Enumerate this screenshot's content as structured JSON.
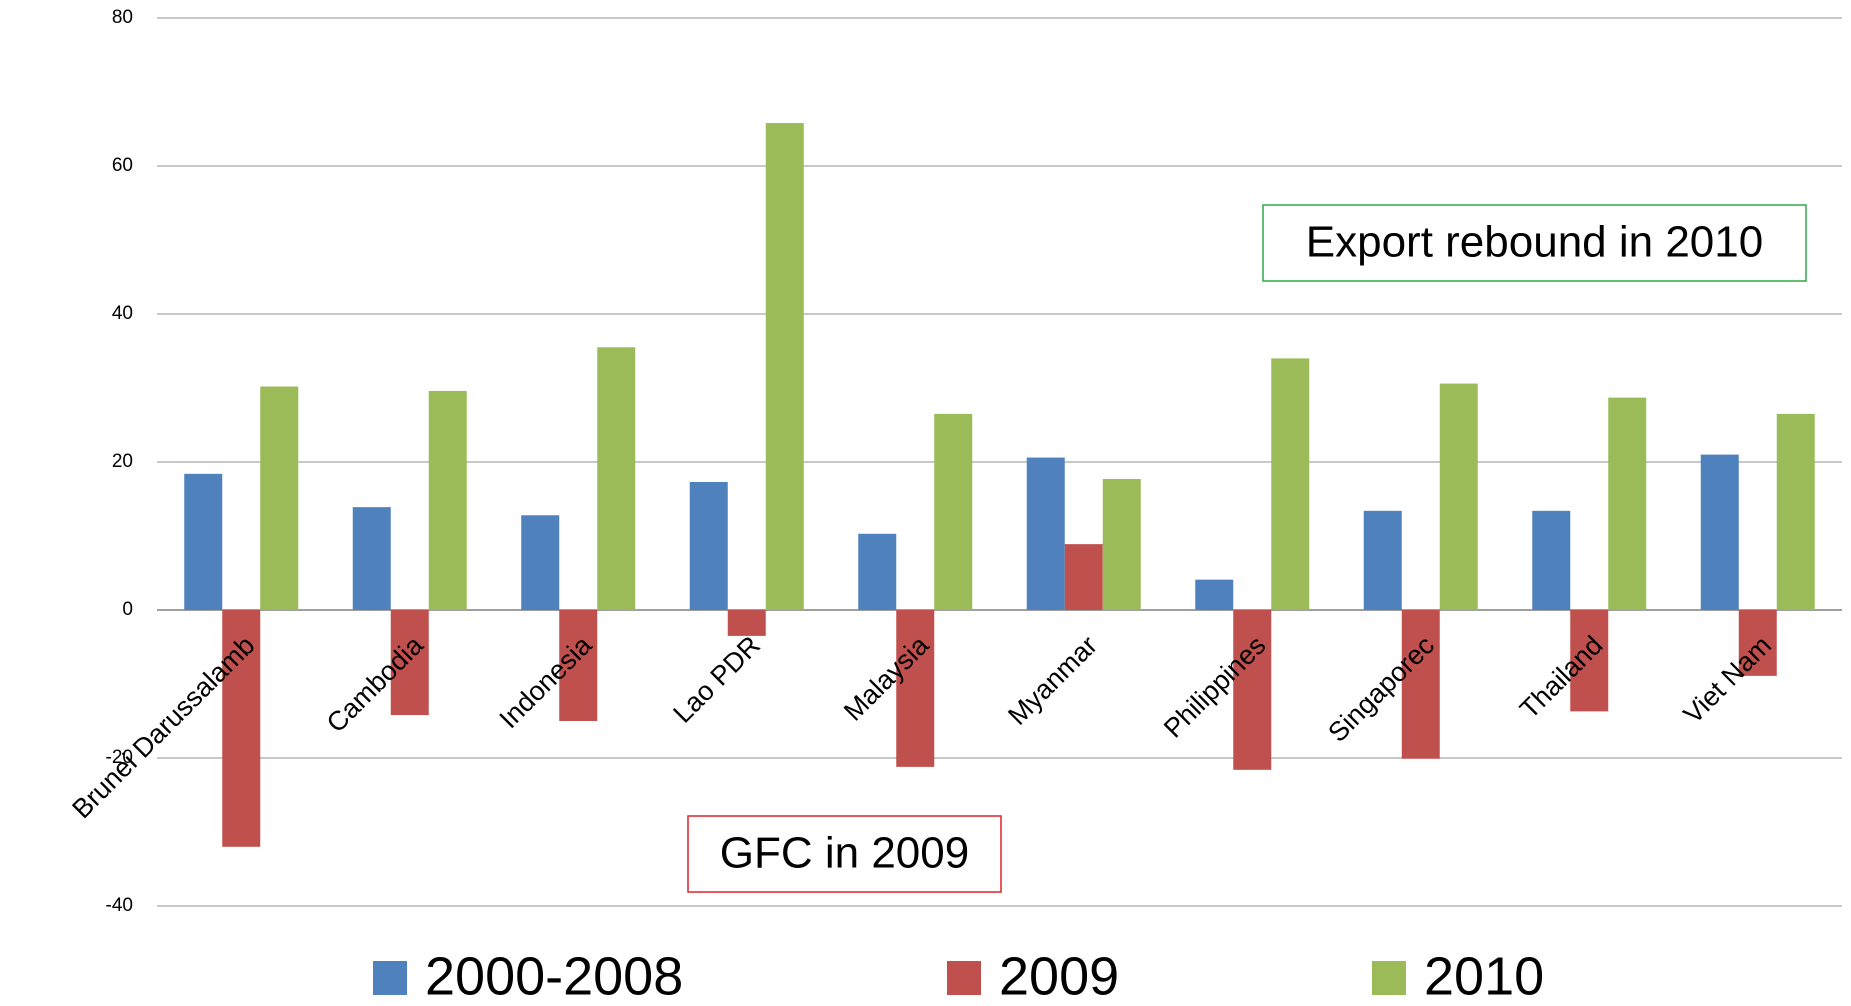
{
  "chart_data": {
    "type": "bar",
    "categories": [
      "Brunei Darussalamb",
      "Cambodia",
      "Indonesia",
      "Lao PDR",
      "Malaysia",
      "Myanmar",
      "Philippines",
      "Singaporec",
      "Thailand",
      "Viet Nam"
    ],
    "series": [
      {
        "name": "2000-2008",
        "color": "#4f81bd",
        "values": [
          18.4,
          13.9,
          12.8,
          17.3,
          10.3,
          20.6,
          4.1,
          13.4,
          13.4,
          21.0
        ]
      },
      {
        "name": "2009",
        "color": "#c0504d",
        "values": [
          -32.0,
          -14.2,
          -15.0,
          -3.5,
          -21.2,
          8.9,
          -21.6,
          -20.1,
          -13.7,
          -8.9
        ]
      },
      {
        "name": "2010",
        "color": "#9bbb59",
        "values": [
          30.2,
          29.6,
          35.5,
          65.8,
          26.5,
          17.7,
          34.0,
          30.6,
          28.7,
          26.5
        ]
      }
    ],
    "ylim": [
      -40,
      80
    ],
    "yticks": [
      -40,
      -20,
      0,
      20,
      40,
      60,
      80
    ],
    "grid": true,
    "legend": "bottom",
    "annotations": [
      {
        "text": "Export rebound in 2010",
        "color": "#2ea84a"
      },
      {
        "text": "GFC in 2009",
        "color": "#e0202a"
      }
    ]
  }
}
